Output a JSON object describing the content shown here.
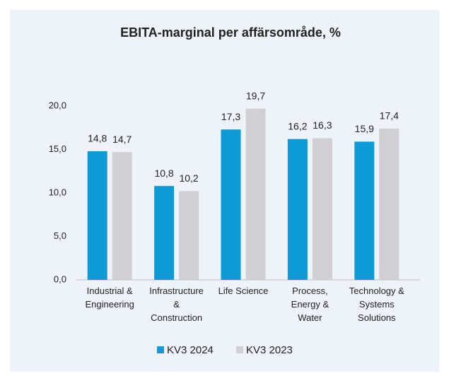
{
  "chart_data": {
    "type": "bar",
    "title": "EBITA-marginal per affärsområde, %",
    "categories": [
      "Industrial &\nEngineering",
      "Infrastructure\n&\nConstruction",
      "Life Science",
      "Process,\nEnergy &\nWater",
      "Technology &\nSystems\nSolutions"
    ],
    "series": [
      {
        "name": "KV3 2024",
        "color": "#0e9ad7",
        "values": [
          14.8,
          10.8,
          17.3,
          16.2,
          15.9
        ],
        "value_labels": [
          "14,8",
          "10,8",
          "17,3",
          "16,2",
          "15,9"
        ]
      },
      {
        "name": "KV3 2023",
        "color": "#d0d0d4",
        "values": [
          14.7,
          10.2,
          19.7,
          16.3,
          17.4
        ],
        "value_labels": [
          "14,7",
          "10,2",
          "19,7",
          "16,3",
          "17,4"
        ]
      }
    ],
    "ylim": [
      0,
      20
    ],
    "yticks": [
      {
        "value": 0,
        "label": "0,0"
      },
      {
        "value": 5,
        "label": "5,0"
      },
      {
        "value": 10,
        "label": "10,0"
      },
      {
        "value": 15,
        "label": "15,0"
      },
      {
        "value": 20,
        "label": "20,0"
      }
    ],
    "grid": false,
    "legend": "bottom"
  }
}
